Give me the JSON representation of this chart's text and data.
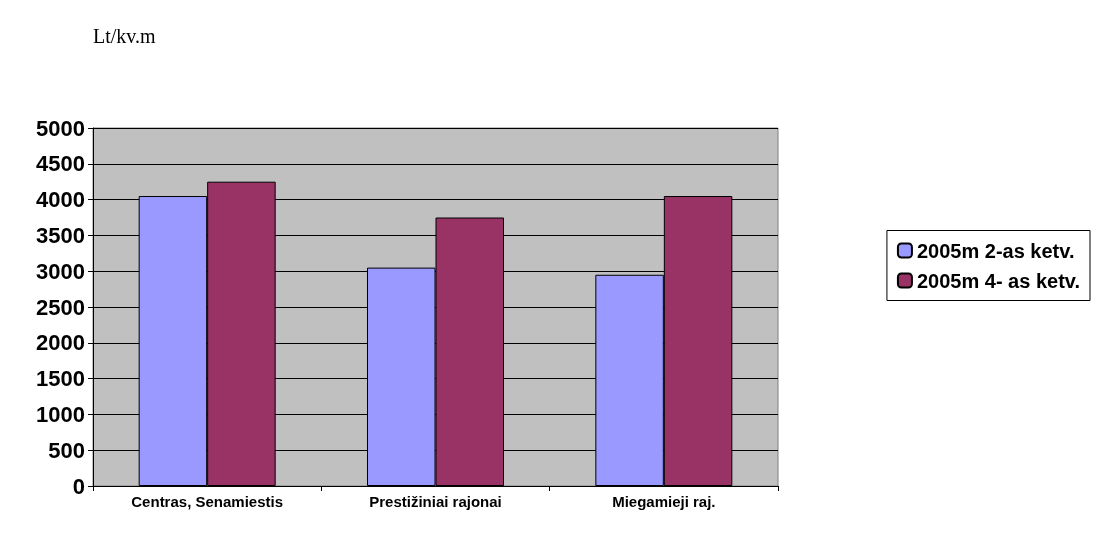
{
  "chart_data": {
    "type": "bar",
    "ylabel": "Lt/kv.m",
    "categories": [
      "Centras, Senamiestis",
      "Prestižiniai rajonai",
      "Miegamieji raj."
    ],
    "series": [
      {
        "name": "2005m 2-as ketv.",
        "color": "#9999ff",
        "values": [
          4050,
          3050,
          2950
        ]
      },
      {
        "name": "2005m 4- as ketv.",
        "color": "#993366",
        "values": [
          4250,
          3750,
          4050
        ]
      }
    ],
    "ylim": [
      0,
      5000
    ],
    "yticks": [
      0,
      500,
      1000,
      1500,
      2000,
      2500,
      3000,
      3500,
      4000,
      4500,
      5000
    ],
    "grid": "y",
    "legend": "right"
  }
}
